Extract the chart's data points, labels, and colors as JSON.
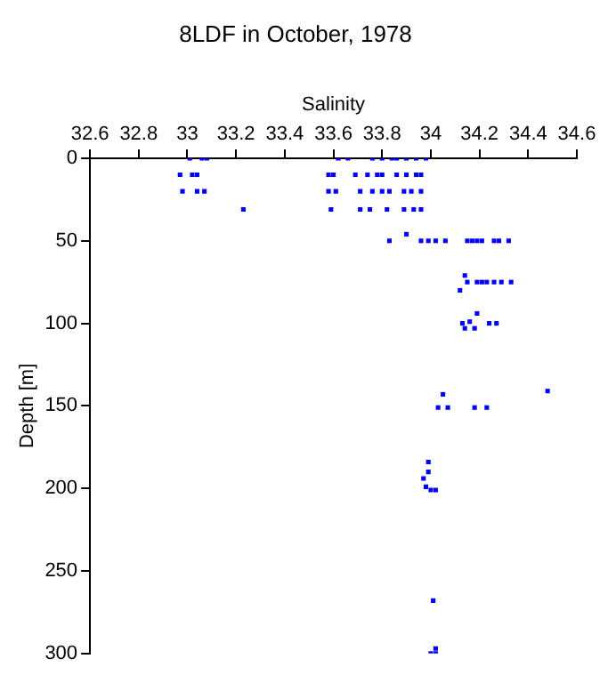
{
  "chart_data": {
    "type": "scatter",
    "title": "8LDF in October, 1978",
    "xlabel": "Salinity",
    "ylabel": "Depth [m]",
    "x": [
      33.01,
      33.06,
      33.08,
      33.62,
      33.66,
      33.76,
      33.8,
      33.84,
      33.86,
      33.9,
      33.94,
      33.98,
      32.97,
      33.02,
      33.04,
      33.58,
      33.6,
      33.69,
      33.74,
      33.78,
      33.8,
      33.86,
      33.9,
      33.94,
      33.96,
      32.98,
      33.04,
      33.07,
      33.58,
      33.61,
      33.71,
      33.76,
      33.8,
      33.83,
      33.89,
      33.92,
      33.96,
      33.23,
      33.59,
      33.71,
      33.75,
      33.82,
      33.89,
      33.93,
      33.96,
      33.9,
      33.83,
      33.96,
      33.99,
      34.02,
      34.06,
      34.15,
      34.17,
      34.19,
      34.21,
      34.26,
      34.28,
      34.32,
      34.14,
      34.15,
      34.19,
      34.21,
      34.23,
      34.26,
      34.29,
      34.33,
      34.12,
      34.19,
      34.13,
      34.14,
      34.16,
      34.18,
      34.24,
      34.27,
      34.48,
      34.05,
      34.03,
      34.07,
      34.18,
      34.23,
      33.99,
      33.99,
      33.97,
      33.98,
      34.0,
      34.02,
      34.01,
      34.02,
      34.0,
      34.02
    ],
    "values": [
      0,
      0,
      0,
      0,
      0,
      0,
      0,
      0,
      0,
      0,
      0,
      0,
      10,
      10,
      10,
      10,
      10,
      10,
      10,
      10,
      10,
      10,
      10,
      10,
      10,
      20,
      20,
      20,
      20,
      20,
      20,
      20,
      20,
      20,
      20,
      20,
      20,
      31,
      31,
      31,
      31,
      31,
      31,
      31,
      31,
      46,
      50,
      50,
      50,
      50,
      50,
      50,
      50,
      50,
      50,
      50,
      50,
      50,
      71,
      75,
      75,
      75,
      75,
      75,
      75,
      75,
      80,
      94,
      100,
      103,
      99,
      103,
      100,
      100,
      141,
      143,
      151,
      151,
      151,
      151,
      184,
      190,
      194,
      199,
      201,
      201,
      268,
      297,
      300,
      300
    ],
    "color": "#0000ff",
    "marker": "square",
    "grid": false,
    "xlim": [
      32.6,
      34.6
    ],
    "xticks": [
      32.6,
      32.8,
      33,
      33.2,
      33.4,
      33.6,
      33.8,
      34,
      34.2,
      34.4,
      34.6
    ],
    "ylim": [
      300,
      0
    ],
    "yticks": [
      0,
      50,
      100,
      150,
      200,
      250,
      300
    ]
  }
}
